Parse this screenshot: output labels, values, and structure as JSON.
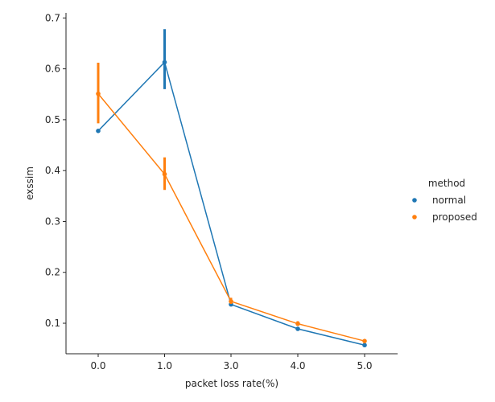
{
  "chart_data": {
    "type": "line",
    "title": "",
    "xlabel": "packet loss rate(%)",
    "ylabel": "exssim",
    "categories": [
      "0.0",
      "1.0",
      "3.0",
      "4.0",
      "5.0"
    ],
    "ylim": [
      0.04,
      0.71
    ],
    "yticks": [
      "0.1",
      "0.2",
      "0.3",
      "0.4",
      "0.5",
      "0.6",
      "0.7"
    ],
    "grid": false,
    "legend": {
      "title": "method",
      "position": "right"
    },
    "series": [
      {
        "name": "normal",
        "color": "#1f77b4",
        "values": [
          0.478,
          0.613,
          0.137,
          0.089,
          0.057
        ],
        "ci_low": [
          0.476,
          0.56,
          0.134,
          0.086,
          0.055
        ],
        "ci_high": [
          0.48,
          0.678,
          0.14,
          0.092,
          0.059
        ]
      },
      {
        "name": "proposed",
        "color": "#ff7f0e",
        "values": [
          0.551,
          0.393,
          0.143,
          0.099,
          0.065
        ],
        "ci_low": [
          0.493,
          0.362,
          0.138,
          0.096,
          0.063
        ],
        "ci_high": [
          0.612,
          0.426,
          0.15,
          0.104,
          0.067
        ]
      }
    ]
  }
}
